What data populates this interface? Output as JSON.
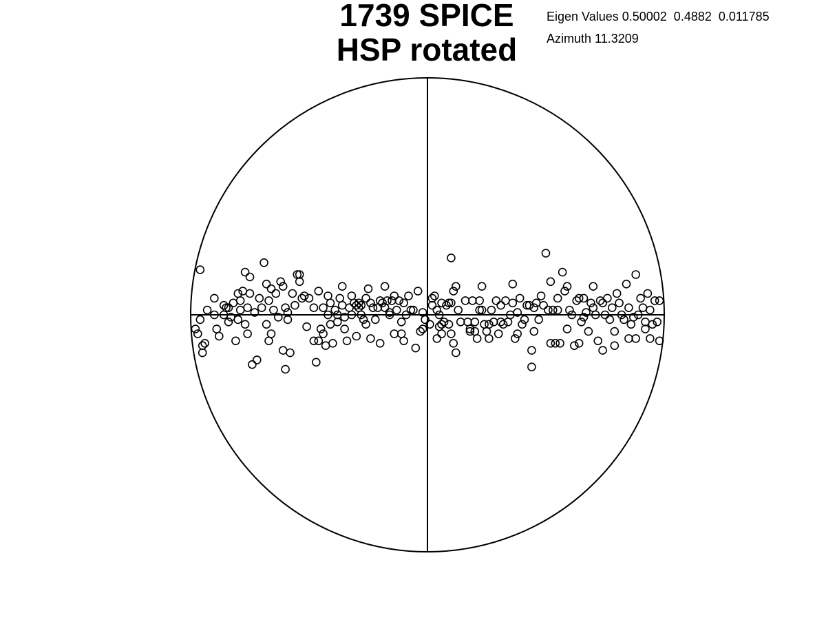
{
  "title_lines": [
    "1739 SPICE",
    "HSP rotated"
  ],
  "eigen_values_text": "Eigen Values 0.50002  0.4882  0.011785",
  "azimuth_text": "Azimuth 11.3209",
  "chart_data": {
    "type": "scatter",
    "title": "1739 SPICE HSP rotated",
    "projection": "stereonet",
    "grid": false,
    "xlim": [
      -1,
      1
    ],
    "ylim": [
      -1,
      1
    ],
    "marker": "open-circle",
    "eigen_values": [
      0.50002,
      0.4882,
      0.011785
    ],
    "azimuth": 11.3209,
    "series": [
      {
        "points": [
          [
            -0.96,
            0.19
          ],
          [
            -0.96,
            -0.02
          ],
          [
            -0.97,
            -0.08
          ],
          [
            -0.95,
            -0.13
          ],
          [
            -0.94,
            -0.12
          ],
          [
            -0.95,
            -0.16
          ],
          [
            -0.98,
            -0.06
          ],
          [
            -0.93,
            0.02
          ],
          [
            -0.9,
            0.07
          ],
          [
            -0.9,
            0.0
          ],
          [
            -0.89,
            -0.06
          ],
          [
            -0.88,
            -0.09
          ],
          [
            -0.86,
            0.0
          ],
          [
            -0.86,
            0.04
          ],
          [
            -0.85,
            0.03
          ],
          [
            -0.84,
            0.03
          ],
          [
            -0.84,
            -0.03
          ],
          [
            -0.83,
            -0.01
          ],
          [
            -0.82,
            0.05
          ],
          [
            -0.81,
            -0.11
          ],
          [
            -0.8,
            -0.02
          ],
          [
            -0.8,
            0.09
          ],
          [
            -0.79,
            0.02
          ],
          [
            -0.79,
            0.06
          ],
          [
            -0.78,
            0.1
          ],
          [
            -0.77,
            0.18
          ],
          [
            -0.77,
            -0.04
          ],
          [
            -0.76,
            0.03
          ],
          [
            -0.76,
            -0.08
          ],
          [
            -0.75,
            0.09
          ],
          [
            -0.75,
            0.16
          ],
          [
            -0.74,
            -0.21
          ],
          [
            -0.73,
            0.01
          ],
          [
            -0.72,
            -0.19
          ],
          [
            -0.71,
            0.07
          ],
          [
            -0.7,
            0.03
          ],
          [
            -0.69,
            0.22
          ],
          [
            -0.68,
            0.13
          ],
          [
            -0.68,
            -0.04
          ],
          [
            -0.67,
            0.06
          ],
          [
            -0.67,
            -0.11
          ],
          [
            -0.66,
            -0.08
          ],
          [
            -0.66,
            0.11
          ],
          [
            -0.65,
            0.02
          ],
          [
            -0.64,
            0.09
          ],
          [
            -0.63,
            -0.01
          ],
          [
            -0.62,
            0.14
          ],
          [
            -0.61,
            0.12
          ],
          [
            -0.61,
            -0.15
          ],
          [
            -0.6,
            -0.23
          ],
          [
            -0.6,
            0.03
          ],
          [
            -0.59,
            -0.02
          ],
          [
            -0.59,
            0.01
          ],
          [
            -0.58,
            -0.16
          ],
          [
            -0.57,
            0.09
          ],
          [
            -0.56,
            0.04
          ],
          [
            -0.55,
            0.17
          ],
          [
            -0.54,
            0.17
          ],
          [
            -0.54,
            0.14
          ],
          [
            -0.53,
            0.07
          ],
          [
            -0.52,
            0.08
          ],
          [
            -0.51,
            -0.05
          ],
          [
            -0.5,
            0.07
          ],
          [
            -0.48,
            -0.11
          ],
          [
            -0.48,
            0.03
          ],
          [
            -0.47,
            -0.2
          ],
          [
            -0.46,
            -0.11
          ],
          [
            -0.46,
            0.1
          ],
          [
            -0.45,
            -0.06
          ],
          [
            -0.44,
            0.03
          ],
          [
            -0.44,
            -0.08
          ],
          [
            -0.43,
            -0.13
          ],
          [
            -0.42,
            0.08
          ],
          [
            -0.42,
            0.0
          ],
          [
            -0.41,
            -0.04
          ],
          [
            -0.41,
            0.05
          ],
          [
            -0.4,
            -0.12
          ],
          [
            -0.39,
            0.02
          ],
          [
            -0.38,
            0.0
          ],
          [
            -0.38,
            -0.03
          ],
          [
            -0.37,
            0.07
          ],
          [
            -0.36,
            0.12
          ],
          [
            -0.36,
            0.04
          ],
          [
            -0.35,
            -0.01
          ],
          [
            -0.35,
            -0.06
          ],
          [
            -0.34,
            -0.11
          ],
          [
            -0.33,
            0.03
          ],
          [
            -0.32,
            0.08
          ],
          [
            -0.32,
            0.0
          ],
          [
            -0.31,
            0.05
          ],
          [
            -0.3,
            0.04
          ],
          [
            -0.3,
            -0.09
          ],
          [
            -0.29,
            0.03
          ],
          [
            -0.29,
            0.05
          ],
          [
            -0.28,
            0.04
          ],
          [
            -0.28,
            0.0
          ],
          [
            -0.27,
            -0.02
          ],
          [
            -0.26,
            0.07
          ],
          [
            -0.26,
            -0.04
          ],
          [
            -0.25,
            0.11
          ],
          [
            -0.24,
            0.05
          ],
          [
            -0.24,
            -0.1
          ],
          [
            -0.23,
            0.03
          ],
          [
            -0.22,
            -0.02
          ],
          [
            -0.21,
            0.03
          ],
          [
            -0.2,
            0.06
          ],
          [
            -0.2,
            -0.12
          ],
          [
            -0.19,
            0.05
          ],
          [
            -0.18,
            0.03
          ],
          [
            -0.18,
            0.12
          ],
          [
            -0.17,
            0.06
          ],
          [
            -0.16,
            0.0
          ],
          [
            -0.16,
            0.01
          ],
          [
            -0.15,
            0.06
          ],
          [
            -0.14,
            -0.08
          ],
          [
            -0.14,
            0.08
          ],
          [
            -0.13,
            0.02
          ],
          [
            -0.12,
            0.06
          ],
          [
            -0.11,
            -0.08
          ],
          [
            -0.11,
            -0.03
          ],
          [
            -0.1,
            0.05
          ],
          [
            -0.1,
            -0.11
          ],
          [
            -0.09,
            0.0
          ],
          [
            -0.08,
            0.08
          ],
          [
            -0.07,
            0.02
          ],
          [
            -0.06,
            0.02
          ],
          [
            -0.05,
            -0.14
          ],
          [
            -0.04,
            0.1
          ],
          [
            -0.03,
            -0.07
          ],
          [
            -0.02,
            0.01
          ],
          [
            -0.02,
            -0.06
          ],
          [
            -0.01,
            -0.02
          ],
          [
            0.01,
            -0.04
          ],
          [
            0.02,
            0.07
          ],
          [
            0.02,
            0.04
          ],
          [
            0.03,
            0.08
          ],
          [
            0.04,
            -0.1
          ],
          [
            0.04,
            0.02
          ],
          [
            0.05,
            0.0
          ],
          [
            0.05,
            -0.05
          ],
          [
            0.06,
            -0.04
          ],
          [
            0.06,
            -0.08
          ],
          [
            0.06,
            0.05
          ],
          [
            0.07,
            -0.03
          ],
          [
            0.08,
            0.04
          ],
          [
            0.09,
            -0.04
          ],
          [
            0.09,
            0.05
          ],
          [
            0.1,
            0.05
          ],
          [
            0.1,
            0.24
          ],
          [
            0.1,
            -0.08
          ],
          [
            0.11,
            -0.12
          ],
          [
            0.11,
            0.1
          ],
          [
            0.12,
            0.12
          ],
          [
            0.12,
            -0.16
          ],
          [
            0.13,
            0.02
          ],
          [
            0.14,
            -0.03
          ],
          [
            0.16,
            0.06
          ],
          [
            0.17,
            -0.03
          ],
          [
            0.18,
            -0.06
          ],
          [
            0.18,
            -0.07
          ],
          [
            0.19,
            0.06
          ],
          [
            0.2,
            -0.03
          ],
          [
            0.2,
            -0.07
          ],
          [
            0.21,
            -0.1
          ],
          [
            0.22,
            0.06
          ],
          [
            0.22,
            0.02
          ],
          [
            0.23,
            0.02
          ],
          [
            0.23,
            0.12
          ],
          [
            0.24,
            -0.04
          ],
          [
            0.25,
            -0.07
          ],
          [
            0.26,
            -0.04
          ],
          [
            0.26,
            -0.1
          ],
          [
            0.27,
            0.02
          ],
          [
            0.28,
            -0.03
          ],
          [
            0.29,
            0.06
          ],
          [
            0.3,
            -0.08
          ],
          [
            0.31,
            -0.03
          ],
          [
            0.31,
            0.04
          ],
          [
            0.32,
            -0.04
          ],
          [
            0.33,
            0.06
          ],
          [
            0.34,
            -0.03
          ],
          [
            0.35,
            0.0
          ],
          [
            0.36,
            0.13
          ],
          [
            0.36,
            0.05
          ],
          [
            0.37,
            -0.1
          ],
          [
            0.38,
            0.01
          ],
          [
            0.38,
            -0.08
          ],
          [
            0.39,
            0.07
          ],
          [
            0.4,
            -0.04
          ],
          [
            0.41,
            -0.02
          ],
          [
            0.42,
            0.04
          ],
          [
            0.43,
            0.04
          ],
          [
            0.44,
            -0.15
          ],
          [
            0.44,
            -0.22
          ],
          [
            0.45,
            0.03
          ],
          [
            0.45,
            -0.07
          ],
          [
            0.46,
            0.05
          ],
          [
            0.47,
            -0.02
          ],
          [
            0.48,
            0.08
          ],
          [
            0.49,
            0.04
          ],
          [
            0.5,
            0.26
          ],
          [
            0.51,
            0.02
          ],
          [
            0.52,
            0.14
          ],
          [
            0.52,
            -0.12
          ],
          [
            0.53,
            0.02
          ],
          [
            0.54,
            -0.12
          ],
          [
            0.55,
            0.02
          ],
          [
            0.55,
            0.07
          ],
          [
            0.56,
            -0.12
          ],
          [
            0.57,
            0.18
          ],
          [
            0.58,
            0.1
          ],
          [
            0.59,
            -0.06
          ],
          [
            0.59,
            0.12
          ],
          [
            0.6,
            0.02
          ],
          [
            0.61,
            0.0
          ],
          [
            0.62,
            -0.13
          ],
          [
            0.63,
            0.06
          ],
          [
            0.64,
            0.07
          ],
          [
            0.64,
            -0.12
          ],
          [
            0.65,
            -0.03
          ],
          [
            0.66,
            0.07
          ],
          [
            0.66,
            -0.01
          ],
          [
            0.67,
            0.01
          ],
          [
            0.68,
            -0.07
          ],
          [
            0.69,
            0.05
          ],
          [
            0.7,
            0.03
          ],
          [
            0.7,
            0.12
          ],
          [
            0.71,
            0.0
          ],
          [
            0.72,
            -0.11
          ],
          [
            0.73,
            0.06
          ],
          [
            0.74,
            -0.15
          ],
          [
            0.74,
            0.05
          ],
          [
            0.75,
            0.0
          ],
          [
            0.76,
            0.07
          ],
          [
            0.77,
            -0.02
          ],
          [
            0.78,
            0.03
          ],
          [
            0.79,
            -0.07
          ],
          [
            0.79,
            -0.13
          ],
          [
            0.8,
            0.09
          ],
          [
            0.81,
            0.05
          ],
          [
            0.82,
            0.0
          ],
          [
            0.83,
            -0.02
          ],
          [
            0.84,
            0.13
          ],
          [
            0.85,
            0.03
          ],
          [
            0.85,
            -0.1
          ],
          [
            0.86,
            -0.04
          ],
          [
            0.87,
            -0.01
          ],
          [
            0.88,
            0.17
          ],
          [
            0.88,
            -0.1
          ],
          [
            0.89,
            0.0
          ],
          [
            0.9,
            0.07
          ],
          [
            0.91,
            0.03
          ],
          [
            0.92,
            -0.03
          ],
          [
            0.92,
            -0.06
          ],
          [
            0.93,
            0.09
          ],
          [
            0.94,
            0.02
          ],
          [
            0.94,
            -0.1
          ],
          [
            0.95,
            -0.04
          ],
          [
            0.96,
            0.06
          ],
          [
            0.97,
            -0.03
          ],
          [
            0.98,
            0.06
          ],
          [
            0.98,
            -0.11
          ]
        ]
      }
    ]
  }
}
